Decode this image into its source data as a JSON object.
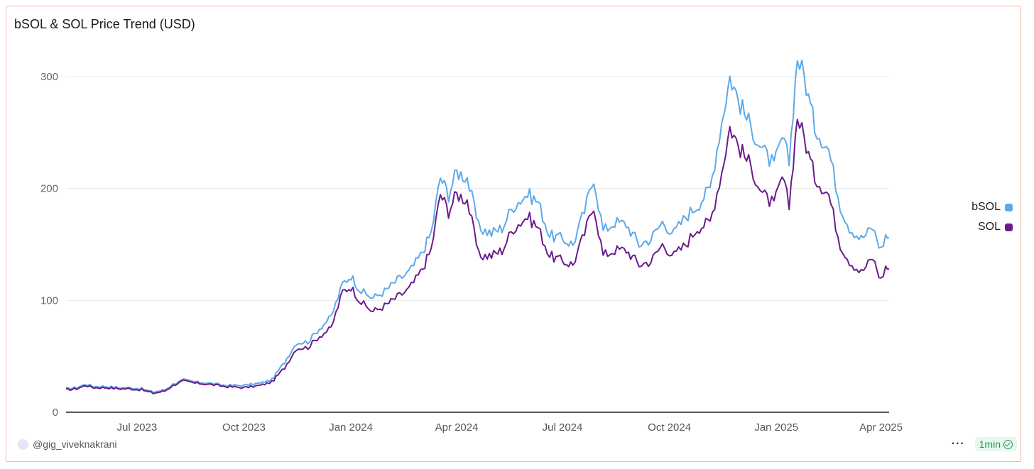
{
  "chart_data": {
    "type": "line",
    "title": "bSOL & SOL Price Trend (USD)",
    "xlabel": "",
    "ylabel": "",
    "ylim": [
      0,
      320
    ],
    "xlim": [
      "2023-05-01",
      "2025-04-08"
    ],
    "yticks": [
      0,
      100,
      200,
      300
    ],
    "xticks": [
      {
        "label": "Jul 2023",
        "date": "2023-07-01"
      },
      {
        "label": "Oct 2023",
        "date": "2023-10-01"
      },
      {
        "label": "Jan 2024",
        "date": "2024-01-01"
      },
      {
        "label": "Apr 2024",
        "date": "2024-04-01"
      },
      {
        "label": "Jul 2024",
        "date": "2024-07-01"
      },
      {
        "label": "Oct 2024",
        "date": "2024-10-01"
      },
      {
        "label": "Jan 2025",
        "date": "2025-01-01"
      },
      {
        "label": "Apr 2025",
        "date": "2025-04-01"
      }
    ],
    "grid": true,
    "legend_position": "right",
    "series": [
      {
        "name": "bSOL",
        "color": "#5da9e9",
        "points": [
          [
            "2023-05-01",
            21
          ],
          [
            "2023-05-10",
            22
          ],
          [
            "2023-05-18",
            25
          ],
          [
            "2023-05-25",
            23
          ],
          [
            "2023-06-05",
            23
          ],
          [
            "2023-06-15",
            22
          ],
          [
            "2023-06-25",
            22
          ],
          [
            "2023-07-05",
            21
          ],
          [
            "2023-07-15",
            18
          ],
          [
            "2023-07-25",
            20
          ],
          [
            "2023-08-01",
            25
          ],
          [
            "2023-08-10",
            29
          ],
          [
            "2023-08-20",
            27
          ],
          [
            "2023-09-01",
            26
          ],
          [
            "2023-09-15",
            24
          ],
          [
            "2023-10-01",
            24
          ],
          [
            "2023-10-15",
            26
          ],
          [
            "2023-10-25",
            29
          ],
          [
            "2023-11-05",
            45
          ],
          [
            "2023-11-15",
            62
          ],
          [
            "2023-11-25",
            63
          ],
          [
            "2023-12-05",
            75
          ],
          [
            "2023-12-15",
            85
          ],
          [
            "2023-12-25",
            115
          ],
          [
            "2024-01-01",
            122
          ],
          [
            "2024-01-10",
            108
          ],
          [
            "2024-01-20",
            102
          ],
          [
            "2024-01-30",
            108
          ],
          [
            "2024-02-10",
            118
          ],
          [
            "2024-02-20",
            125
          ],
          [
            "2024-03-01",
            140
          ],
          [
            "2024-03-10",
            160
          ],
          [
            "2024-03-18",
            210
          ],
          [
            "2024-03-25",
            195
          ],
          [
            "2024-04-01",
            215
          ],
          [
            "2024-04-10",
            210
          ],
          [
            "2024-04-20",
            165
          ],
          [
            "2024-05-01",
            160
          ],
          [
            "2024-05-10",
            165
          ],
          [
            "2024-05-20",
            185
          ],
          [
            "2024-06-01",
            195
          ],
          [
            "2024-06-10",
            188
          ],
          [
            "2024-06-20",
            158
          ],
          [
            "2024-07-01",
            155
          ],
          [
            "2024-07-10",
            150
          ],
          [
            "2024-07-20",
            180
          ],
          [
            "2024-07-28",
            210
          ],
          [
            "2024-08-05",
            162
          ],
          [
            "2024-08-15",
            170
          ],
          [
            "2024-08-25",
            168
          ],
          [
            "2024-09-05",
            150
          ],
          [
            "2024-09-15",
            155
          ],
          [
            "2024-09-25",
            170
          ],
          [
            "2024-10-05",
            160
          ],
          [
            "2024-10-15",
            175
          ],
          [
            "2024-10-25",
            185
          ],
          [
            "2024-11-05",
            200
          ],
          [
            "2024-11-15",
            260
          ],
          [
            "2024-11-22",
            300
          ],
          [
            "2024-12-01",
            275
          ],
          [
            "2024-12-10",
            255
          ],
          [
            "2024-12-20",
            235
          ],
          [
            "2024-12-30",
            220
          ],
          [
            "2025-01-06",
            245
          ],
          [
            "2025-01-12",
            225
          ],
          [
            "2025-01-19",
            318
          ],
          [
            "2025-01-25",
            300
          ],
          [
            "2025-02-03",
            255
          ],
          [
            "2025-02-15",
            235
          ],
          [
            "2025-02-25",
            185
          ],
          [
            "2025-03-05",
            165
          ],
          [
            "2025-03-15",
            155
          ],
          [
            "2025-03-25",
            165
          ],
          [
            "2025-04-01",
            145
          ],
          [
            "2025-04-05",
            158
          ],
          [
            "2025-04-08",
            156
          ]
        ]
      },
      {
        "name": "SOL",
        "color": "#6a1b8a",
        "points": [
          [
            "2023-05-01",
            20
          ],
          [
            "2023-05-10",
            21
          ],
          [
            "2023-05-18",
            24
          ],
          [
            "2023-05-25",
            22
          ],
          [
            "2023-06-05",
            22
          ],
          [
            "2023-06-15",
            21
          ],
          [
            "2023-06-25",
            21
          ],
          [
            "2023-07-05",
            20
          ],
          [
            "2023-07-15",
            17
          ],
          [
            "2023-07-25",
            19
          ],
          [
            "2023-08-01",
            24
          ],
          [
            "2023-08-10",
            28
          ],
          [
            "2023-08-20",
            26
          ],
          [
            "2023-09-01",
            25
          ],
          [
            "2023-09-15",
            23
          ],
          [
            "2023-10-01",
            22
          ],
          [
            "2023-10-15",
            24
          ],
          [
            "2023-10-25",
            27
          ],
          [
            "2023-11-05",
            40
          ],
          [
            "2023-11-15",
            57
          ],
          [
            "2023-11-25",
            58
          ],
          [
            "2023-12-05",
            68
          ],
          [
            "2023-12-15",
            75
          ],
          [
            "2023-12-25",
            108
          ],
          [
            "2024-01-01",
            112
          ],
          [
            "2024-01-10",
            98
          ],
          [
            "2024-01-20",
            90
          ],
          [
            "2024-01-30",
            95
          ],
          [
            "2024-02-10",
            103
          ],
          [
            "2024-02-20",
            110
          ],
          [
            "2024-03-01",
            125
          ],
          [
            "2024-03-10",
            145
          ],
          [
            "2024-03-18",
            195
          ],
          [
            "2024-03-25",
            180
          ],
          [
            "2024-04-01",
            195
          ],
          [
            "2024-04-10",
            190
          ],
          [
            "2024-04-20",
            140
          ],
          [
            "2024-05-01",
            140
          ],
          [
            "2024-05-10",
            145
          ],
          [
            "2024-05-20",
            165
          ],
          [
            "2024-06-01",
            175
          ],
          [
            "2024-06-10",
            165
          ],
          [
            "2024-06-20",
            140
          ],
          [
            "2024-07-01",
            135
          ],
          [
            "2024-07-10",
            132
          ],
          [
            "2024-07-20",
            160
          ],
          [
            "2024-07-28",
            185
          ],
          [
            "2024-08-05",
            140
          ],
          [
            "2024-08-15",
            145
          ],
          [
            "2024-08-25",
            145
          ],
          [
            "2024-09-05",
            132
          ],
          [
            "2024-09-15",
            135
          ],
          [
            "2024-09-25",
            150
          ],
          [
            "2024-10-05",
            140
          ],
          [
            "2024-10-15",
            150
          ],
          [
            "2024-10-25",
            165
          ],
          [
            "2024-11-05",
            170
          ],
          [
            "2024-11-15",
            215
          ],
          [
            "2024-11-22",
            255
          ],
          [
            "2024-12-01",
            235
          ],
          [
            "2024-12-10",
            220
          ],
          [
            "2024-12-20",
            195
          ],
          [
            "2024-12-30",
            185
          ],
          [
            "2025-01-06",
            210
          ],
          [
            "2025-01-12",
            185
          ],
          [
            "2025-01-19",
            265
          ],
          [
            "2025-01-25",
            245
          ],
          [
            "2025-02-03",
            210
          ],
          [
            "2025-02-15",
            195
          ],
          [
            "2025-02-25",
            150
          ],
          [
            "2025-03-05",
            135
          ],
          [
            "2025-03-15",
            125
          ],
          [
            "2025-03-25",
            138
          ],
          [
            "2025-04-01",
            118
          ],
          [
            "2025-04-05",
            130
          ],
          [
            "2025-04-08",
            128
          ]
        ]
      }
    ]
  },
  "footer": {
    "author": "@gig_viveknakrani",
    "more": "···",
    "freshness": "1min"
  }
}
